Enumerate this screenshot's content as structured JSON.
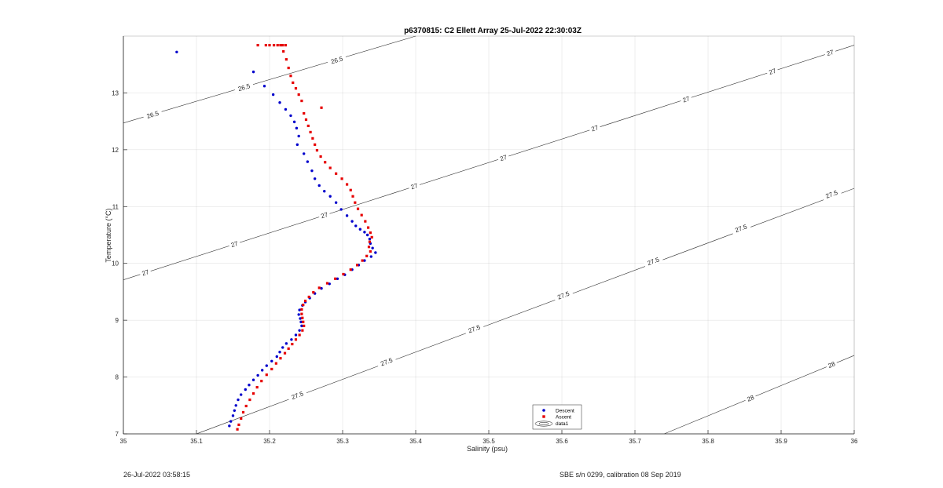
{
  "chart_data": {
    "type": "scatter",
    "title": "p6370815: C2 Ellett Array 25-Jul-2022 22:30:03Z",
    "xlabel": "Salinity (psu)",
    "ylabel": "Temperature (°C)",
    "xlim": [
      35,
      36
    ],
    "ylim": [
      7,
      14
    ],
    "xticks": [
      "35",
      "35.1",
      "35.2",
      "35.3",
      "35.4",
      "35.5",
      "35.6",
      "35.7",
      "35.8",
      "35.9",
      "36"
    ],
    "yticks": [
      "7",
      "8",
      "9",
      "10",
      "11",
      "12",
      "13"
    ],
    "grid": true,
    "legend_position": "bottom-right",
    "legend": [
      {
        "label": "Descent",
        "color": "#0000cc"
      },
      {
        "label": "Ascent",
        "color": "#e60000"
      },
      {
        "label": "data1",
        "color": "#000000"
      }
    ],
    "series": [
      {
        "name": "Descent",
        "color": "#0000cc",
        "points": [
          [
            35.073,
            13.72
          ],
          [
            35.178,
            13.37
          ],
          [
            35.193,
            13.12
          ],
          [
            35.205,
            12.97
          ],
          [
            35.214,
            12.83
          ],
          [
            35.222,
            12.71
          ],
          [
            35.229,
            12.6
          ],
          [
            35.234,
            12.49
          ],
          [
            35.237,
            12.38
          ],
          [
            35.24,
            12.24
          ],
          [
            35.238,
            12.09
          ],
          [
            35.247,
            11.93
          ],
          [
            35.252,
            11.79
          ],
          [
            35.258,
            11.63
          ],
          [
            35.262,
            11.49
          ],
          [
            35.268,
            11.37
          ],
          [
            35.275,
            11.27
          ],
          [
            35.283,
            11.18
          ],
          [
            35.291,
            11.07
          ],
          [
            35.298,
            10.95
          ],
          [
            35.306,
            10.84
          ],
          [
            35.313,
            10.74
          ],
          [
            35.318,
            10.66
          ],
          [
            35.324,
            10.6
          ],
          [
            35.33,
            10.55
          ],
          [
            35.334,
            10.5
          ],
          [
            35.337,
            10.43
          ],
          [
            35.338,
            10.35
          ],
          [
            35.341,
            10.27
          ],
          [
            35.345,
            10.19
          ],
          [
            35.339,
            10.12
          ],
          [
            35.33,
            10.05
          ],
          [
            35.322,
            9.97
          ],
          [
            35.313,
            9.89
          ],
          [
            35.303,
            9.8
          ],
          [
            35.293,
            9.73
          ],
          [
            35.282,
            9.64
          ],
          [
            35.271,
            9.56
          ],
          [
            35.262,
            9.47
          ],
          [
            35.255,
            9.39
          ],
          [
            35.249,
            9.32
          ],
          [
            35.245,
            9.26
          ],
          [
            35.241,
            9.18
          ],
          [
            35.24,
            9.1
          ],
          [
            35.242,
            9.03
          ],
          [
            35.243,
            8.97
          ],
          [
            35.244,
            8.9
          ],
          [
            35.241,
            8.82
          ],
          [
            35.236,
            8.74
          ],
          [
            35.23,
            8.66
          ],
          [
            35.223,
            8.59
          ],
          [
            35.218,
            8.52
          ],
          [
            35.214,
            8.44
          ],
          [
            35.21,
            8.36
          ],
          [
            35.203,
            8.28
          ],
          [
            35.196,
            8.2
          ],
          [
            35.19,
            8.12
          ],
          [
            35.184,
            8.03
          ],
          [
            35.178,
            7.95
          ],
          [
            35.172,
            7.86
          ],
          [
            35.167,
            7.78
          ],
          [
            35.161,
            7.69
          ],
          [
            35.157,
            7.6
          ],
          [
            35.154,
            7.5
          ],
          [
            35.152,
            7.41
          ],
          [
            35.15,
            7.32
          ],
          [
            35.147,
            7.22
          ],
          [
            35.145,
            7.14
          ]
        ]
      },
      {
        "name": "Ascent",
        "color": "#e60000",
        "points": [
          [
            35.184,
            13.84
          ],
          [
            35.195,
            13.84
          ],
          [
            35.2,
            13.84
          ],
          [
            35.206,
            13.84
          ],
          [
            35.211,
            13.84
          ],
          [
            35.215,
            13.84
          ],
          [
            35.218,
            13.84
          ],
          [
            35.222,
            13.84
          ],
          [
            35.219,
            13.73
          ],
          [
            35.223,
            13.59
          ],
          [
            35.226,
            13.44
          ],
          [
            35.229,
            13.3
          ],
          [
            35.232,
            13.18
          ],
          [
            35.236,
            13.08
          ],
          [
            35.24,
            12.97
          ],
          [
            35.244,
            12.86
          ],
          [
            35.271,
            12.74
          ],
          [
            35.247,
            12.64
          ],
          [
            35.25,
            12.53
          ],
          [
            35.253,
            12.42
          ],
          [
            35.256,
            12.31
          ],
          [
            35.259,
            12.2
          ],
          [
            35.262,
            12.09
          ],
          [
            35.265,
            11.99
          ],
          [
            35.27,
            11.88
          ],
          [
            35.276,
            11.78
          ],
          [
            35.283,
            11.68
          ],
          [
            35.291,
            11.58
          ],
          [
            35.299,
            11.49
          ],
          [
            35.306,
            11.39
          ],
          [
            35.311,
            11.29
          ],
          [
            35.314,
            11.18
          ],
          [
            35.317,
            11.07
          ],
          [
            35.321,
            10.96
          ],
          [
            35.326,
            10.85
          ],
          [
            35.331,
            10.74
          ],
          [
            35.335,
            10.63
          ],
          [
            35.338,
            10.54
          ],
          [
            35.34,
            10.46
          ],
          [
            35.337,
            10.38
          ],
          [
            35.336,
            10.29
          ],
          [
            35.338,
            10.21
          ],
          [
            35.333,
            10.13
          ],
          [
            35.327,
            10.05
          ],
          [
            35.32,
            9.97
          ],
          [
            35.311,
            9.89
          ],
          [
            35.301,
            9.81
          ],
          [
            35.29,
            9.73
          ],
          [
            35.279,
            9.65
          ],
          [
            35.268,
            9.57
          ],
          [
            35.26,
            9.49
          ],
          [
            35.254,
            9.41
          ],
          [
            35.249,
            9.34
          ],
          [
            35.246,
            9.27
          ],
          [
            35.244,
            9.19
          ],
          [
            35.244,
            9.11
          ],
          [
            35.245,
            9.04
          ],
          [
            35.246,
            8.97
          ],
          [
            35.247,
            8.9
          ],
          [
            35.245,
            8.82
          ],
          [
            35.241,
            8.74
          ],
          [
            35.236,
            8.66
          ],
          [
            35.231,
            8.58
          ],
          [
            35.226,
            8.5
          ],
          [
            35.221,
            8.42
          ],
          [
            35.215,
            8.33
          ],
          [
            35.209,
            8.24
          ],
          [
            35.203,
            8.14
          ],
          [
            35.196,
            8.04
          ],
          [
            35.189,
            7.93
          ],
          [
            35.183,
            7.82
          ],
          [
            35.178,
            7.71
          ],
          [
            35.173,
            7.6
          ],
          [
            35.168,
            7.49
          ],
          [
            35.164,
            7.38
          ],
          [
            35.161,
            7.27
          ],
          [
            35.158,
            7.16
          ],
          [
            35.156,
            7.08
          ]
        ]
      }
    ],
    "contours": [
      {
        "label": "26.5",
        "points": [
          [
            35,
            12.47
          ],
          [
            35.4,
            14.0
          ]
        ],
        "labels_at": [
          [
            35.04,
            12.62
          ],
          [
            35.165,
            13.1
          ],
          [
            35.292,
            13.58
          ]
        ]
      },
      {
        "label": "27",
        "points": [
          [
            35,
            9.71
          ],
          [
            36,
            13.84
          ]
        ],
        "labels_at": [
          [
            35.03,
            9.84
          ],
          [
            35.152,
            10.34
          ],
          [
            35.275,
            10.85
          ],
          [
            35.398,
            11.36
          ],
          [
            35.52,
            11.86
          ],
          [
            35.645,
            12.38
          ],
          [
            35.77,
            12.89
          ],
          [
            35.888,
            13.38
          ],
          [
            35.967,
            13.71
          ]
        ]
      },
      {
        "label": "27.5",
        "points": [
          [
            35.1,
            7.0
          ],
          [
            36,
            11.32
          ]
        ],
        "labels_at": [
          [
            35.238,
            7.68
          ],
          [
            35.36,
            8.27
          ],
          [
            35.48,
            8.85
          ],
          [
            35.602,
            9.44
          ],
          [
            35.725,
            10.04
          ],
          [
            35.845,
            10.62
          ],
          [
            35.969,
            11.22
          ]
        ]
      },
      {
        "label": "28",
        "points": [
          [
            35.74,
            7.0
          ],
          [
            36,
            8.38
          ]
        ],
        "labels_at": [
          [
            35.858,
            7.63
          ],
          [
            35.969,
            8.22
          ]
        ]
      }
    ],
    "footer": {
      "left": "26-Jul-2022 03:58:15",
      "right": "SBE s/n 0299, calibration 08 Sep 2019"
    }
  }
}
